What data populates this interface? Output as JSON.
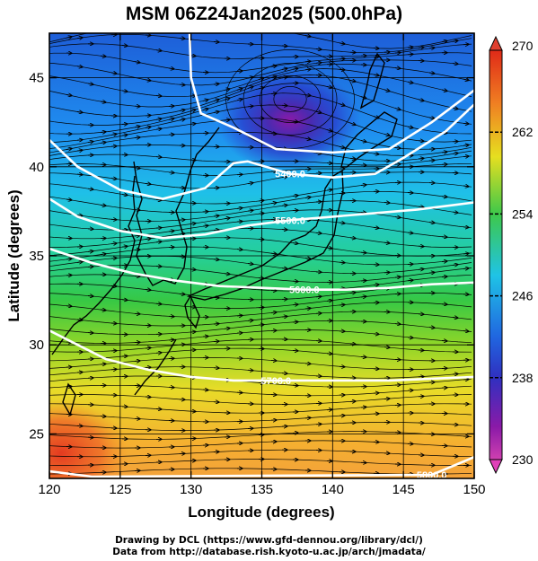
{
  "title": "MSM 06Z24Jan2025 (500.0hPa)",
  "x_axis": {
    "label": "Longitude (degrees)",
    "ticks": [
      "120",
      "125",
      "130",
      "135",
      "140",
      "145",
      "150"
    ]
  },
  "y_axis": {
    "label": "Latitude  (degrees)",
    "ticks": [
      "25",
      "30",
      "35",
      "40",
      "45"
    ]
  },
  "colorbar": {
    "ticks": [
      "270",
      "262",
      "254",
      "246",
      "238",
      "230"
    ]
  },
  "contour_labels": [
    "5400.0",
    "5500.0",
    "5600.0",
    "5700.0",
    "5800.0"
  ],
  "credits": {
    "line1": "Drawing by DCL (https://www.gfd-dennou.org/library/dcl/)",
    "line2": "Data from http://database.rish.kyoto-u.ac.jp/arch/jmadata/"
  },
  "chart_data": {
    "type": "heatmap",
    "title": "MSM 06Z24Jan2025 (500.0hPa)",
    "xlabel": "Longitude (degrees)",
    "ylabel": "Latitude  (degrees)",
    "xlim": [
      120,
      150
    ],
    "ylim": [
      22.5,
      47.5
    ],
    "grid": true,
    "colorbar_range": [
      230,
      270
    ],
    "colorbar_ticks": [
      230,
      238,
      246,
      254,
      262,
      270
    ],
    "contours": [
      {
        "label": "5400.0",
        "points": [
          [
            120,
            41.5
          ],
          [
            122,
            40
          ],
          [
            125,
            38.7
          ],
          [
            128,
            38.2
          ],
          [
            131,
            38.8
          ],
          [
            133,
            40.2
          ],
          [
            134,
            40.3
          ],
          [
            137,
            39.6
          ],
          [
            140,
            39.4
          ],
          [
            143,
            39.6
          ],
          [
            145,
            40.5
          ],
          [
            148,
            42
          ],
          [
            150,
            43.5
          ]
        ]
      },
      {
        "label": "5500.0",
        "points": [
          [
            120,
            38.2
          ],
          [
            122,
            37.2
          ],
          [
            125,
            36.4
          ],
          [
            128,
            36
          ],
          [
            131,
            36.2
          ],
          [
            134,
            36.7
          ],
          [
            137,
            37
          ],
          [
            140,
            37.2
          ],
          [
            143,
            37.4
          ],
          [
            146,
            37.6
          ],
          [
            150,
            38
          ]
        ]
      },
      {
        "label": "5600.0",
        "points": [
          [
            120,
            35.4
          ],
          [
            123,
            34.6
          ],
          [
            126,
            34
          ],
          [
            129,
            33.6
          ],
          [
            132,
            33.3
          ],
          [
            135,
            33.2
          ],
          [
            138,
            33.1
          ],
          [
            141,
            33.1
          ],
          [
            144,
            33.2
          ],
          [
            147,
            33.4
          ],
          [
            150,
            33.5
          ]
        ]
      },
      {
        "label": "5700.0",
        "points": [
          [
            120,
            30.8
          ],
          [
            122,
            30
          ],
          [
            124,
            29.2
          ],
          [
            127,
            28.6
          ],
          [
            130,
            28.2
          ],
          [
            133,
            28
          ],
          [
            136,
            28
          ],
          [
            140,
            28
          ],
          [
            144,
            28
          ],
          [
            147,
            28.1
          ],
          [
            150,
            28.2
          ]
        ]
      },
      {
        "label": "5800.0",
        "points": [
          [
            120,
            22.9
          ],
          [
            123,
            22.6
          ],
          [
            147,
            22.7
          ],
          [
            150,
            23.7
          ]
        ]
      },
      {
        "label": "",
        "points": [
          [
            129.9,
            47.5
          ],
          [
            130,
            45
          ],
          [
            130.7,
            43
          ],
          [
            133,
            42.2
          ],
          [
            136,
            41
          ],
          [
            140,
            40.8
          ],
          [
            144,
            41
          ],
          [
            147,
            42.5
          ],
          [
            150,
            44.3
          ]
        ]
      }
    ],
    "low_center": {
      "lon": 137,
      "lat": 43.8
    }
  }
}
